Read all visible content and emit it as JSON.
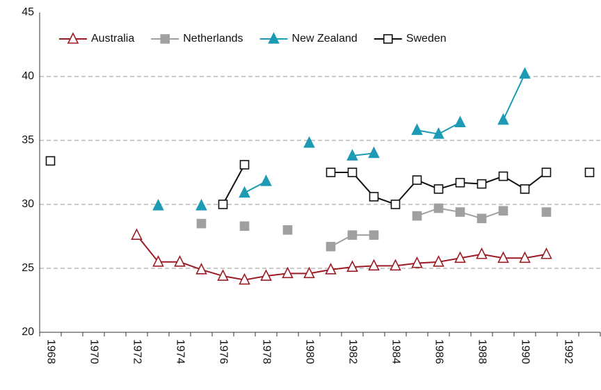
{
  "chart_data": {
    "type": "line",
    "categories": [
      "1968",
      null,
      "1970",
      null,
      "1972",
      null,
      "1974",
      null,
      "1976",
      null,
      "1978",
      null,
      "1980",
      null,
      "1982",
      null,
      "1984",
      null,
      "1986",
      null,
      "1988",
      null,
      "1990",
      null,
      "1992",
      null
    ],
    "series": [
      {
        "name": "Australia",
        "color": "#9b1c24",
        "marker": "triangle",
        "filled": false,
        "values": [
          null,
          null,
          null,
          null,
          27.6,
          25.5,
          25.5,
          24.9,
          24.4,
          24.1,
          24.4,
          24.6,
          24.6,
          24.9,
          25.1,
          25.2,
          25.2,
          25.4,
          25.5,
          25.8,
          26.1,
          25.8,
          25.8,
          26.1,
          null,
          null
        ]
      },
      {
        "name": "Netherlands",
        "color": "#a0a0a0",
        "marker": "square",
        "filled": true,
        "values": [
          null,
          null,
          null,
          null,
          null,
          null,
          null,
          28.5,
          null,
          28.3,
          null,
          28.0,
          null,
          26.7,
          27.6,
          27.6,
          null,
          29.1,
          29.7,
          29.4,
          28.9,
          29.5,
          null,
          29.4,
          null,
          null
        ]
      },
      {
        "name": "New Zealand",
        "color": "#1d9ab4",
        "marker": "triangle",
        "filled": true,
        "values": [
          null,
          null,
          null,
          null,
          null,
          29.9,
          null,
          29.9,
          null,
          30.9,
          31.8,
          null,
          34.8,
          null,
          33.8,
          34.0,
          null,
          35.8,
          35.5,
          36.4,
          null,
          36.6,
          40.2,
          null,
          null,
          null
        ]
      },
      {
        "name": "Sweden",
        "color": "#111111",
        "marker": "square",
        "filled": false,
        "values": [
          33.4,
          null,
          null,
          null,
          null,
          null,
          null,
          null,
          30.0,
          33.1,
          null,
          null,
          null,
          32.5,
          32.5,
          30.6,
          30.0,
          31.9,
          31.2,
          31.7,
          31.6,
          32.2,
          31.2,
          32.5,
          null,
          32.5
        ]
      }
    ],
    "ylim": [
      20,
      45
    ],
    "yticks": [
      20,
      25,
      30,
      35,
      40,
      45
    ],
    "grid": true,
    "legend": "top"
  }
}
